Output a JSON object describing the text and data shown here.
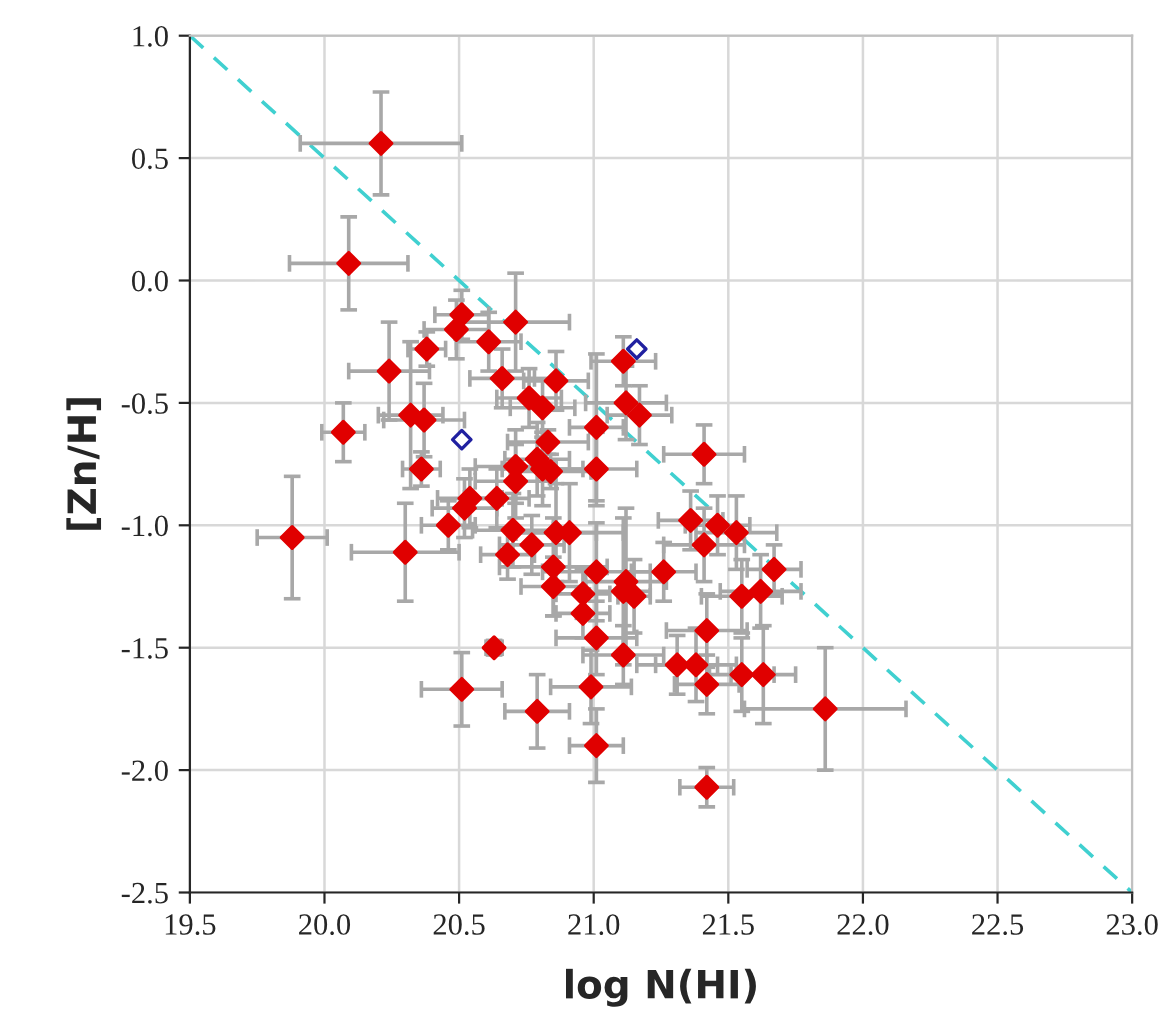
{
  "chart_data": {
    "type": "scatter",
    "xlabel": "log N(HI)",
    "ylabel": "[Zn/H]",
    "xlim": [
      19.5,
      23.0
    ],
    "ylim": [
      -2.5,
      1.0
    ],
    "xticks": [
      {
        "value": 19.5,
        "label": "19.5"
      },
      {
        "value": 20.0,
        "label": "20.0"
      },
      {
        "value": 20.5,
        "label": "20.5"
      },
      {
        "value": 21.0,
        "label": "21.0"
      },
      {
        "value": 21.5,
        "label": "21.5"
      },
      {
        "value": 22.0,
        "label": "22.0"
      },
      {
        "value": 22.5,
        "label": "22.5"
      },
      {
        "value": 23.0,
        "label": "23.0"
      }
    ],
    "yticks": [
      {
        "value": -2.5,
        "label": "-2.5"
      },
      {
        "value": -2.0,
        "label": "-2.0"
      },
      {
        "value": -1.5,
        "label": "-1.5"
      },
      {
        "value": -1.0,
        "label": "-1.0"
      },
      {
        "value": -0.5,
        "label": "-0.5"
      },
      {
        "value": 0.0,
        "label": "0.0"
      },
      {
        "value": 0.5,
        "label": "0.5"
      },
      {
        "value": 1.0,
        "label": "1.0"
      }
    ],
    "grid": true,
    "legend": false,
    "series": [
      {
        "type": "line",
        "color": "#40d0d0",
        "line_style": "dashed",
        "marker": "none",
        "x": [
          19.5,
          23.0
        ],
        "values": [
          1.0,
          -2.5
        ]
      },
      {
        "color": "#e00000",
        "marker": "diamond",
        "x": [
          20.21,
          20.09,
          20.51,
          20.49,
          20.61,
          20.71,
          20.38,
          20.24,
          20.66,
          20.86,
          20.76,
          20.81,
          20.32,
          20.37,
          20.07,
          20.36,
          19.88,
          20.3,
          20.46,
          20.52,
          20.54,
          20.64,
          20.7,
          20.68,
          20.77,
          20.71,
          20.71,
          20.63,
          20.51,
          20.79,
          20.85,
          20.83,
          20.79,
          20.81,
          20.84,
          21.11,
          21.12,
          21.17,
          21.01,
          21.41,
          21.01,
          20.86,
          20.91,
          21.36,
          21.46,
          21.53,
          21.41,
          21.01,
          21.26,
          21.67,
          20.85,
          20.96,
          21.12,
          21.11,
          21.15,
          21.55,
          21.62,
          20.96,
          21.01,
          21.42,
          21.11,
          21.31,
          21.38,
          21.42,
          21.55,
          21.63,
          21.86,
          20.99,
          21.01,
          21.42
        ],
        "values": [
          0.56,
          0.07,
          -0.14,
          -0.2,
          -0.25,
          -0.17,
          -0.28,
          -0.37,
          -0.4,
          -0.41,
          -0.48,
          -0.52,
          -0.55,
          -0.57,
          -0.62,
          -0.77,
          -1.05,
          -1.11,
          -1.0,
          -0.93,
          -0.89,
          -0.89,
          -1.02,
          -1.12,
          -1.08,
          -0.76,
          -0.82,
          -1.5,
          -1.67,
          -1.76,
          -1.17,
          -0.66,
          -0.73,
          -0.77,
          -0.78,
          -0.33,
          -0.5,
          -0.55,
          -0.6,
          -0.71,
          -0.77,
          -1.03,
          -1.03,
          -0.98,
          -1.0,
          -1.03,
          -1.08,
          -1.19,
          -1.19,
          -1.18,
          -1.25,
          -1.28,
          -1.23,
          -1.27,
          -1.29,
          -1.29,
          -1.27,
          -1.36,
          -1.46,
          -1.43,
          -1.53,
          -1.57,
          -1.57,
          -1.65,
          -1.61,
          -1.61,
          -1.75,
          -1.66,
          -1.9,
          -2.07
        ],
        "errors": [
          0.21,
          0.19,
          0.1,
          0.12,
          0.12,
          0.2,
          0.07,
          0.2,
          0.12,
          0.12,
          0.12,
          0.12,
          0.3,
          0.15,
          0.12,
          0.07,
          0.25,
          0.2,
          0.1,
          0.12,
          0.12,
          0.12,
          0.15,
          0.1,
          0.12,
          0.15,
          0.15,
          0.03,
          0.15,
          0.15,
          0.2,
          0.05,
          0.15,
          0.15,
          0.07,
          0.1,
          0.15,
          0.12,
          0.3,
          0.12,
          0.15,
          0.2,
          0.2,
          0.12,
          0.12,
          0.15,
          0.15,
          0.2,
          0.12,
          0.1,
          0.12,
          0.1,
          0.3,
          0.3,
          0.15,
          0.15,
          0.15,
          0.1,
          0.15,
          0.15,
          0.12,
          0.12,
          0.15,
          0.12,
          0.15,
          0.2,
          0.25,
          0.15,
          0.15,
          0.08
        ],
        "xerrors": [
          0.3,
          0.22,
          0.1,
          0.12,
          0.12,
          0.2,
          0.07,
          0.15,
          0.12,
          0.12,
          0.12,
          0.12,
          0.12,
          0.15,
          0.08,
          0.07,
          0.13,
          0.2,
          0.1,
          0.12,
          0.12,
          0.12,
          0.15,
          0.1,
          0.12,
          0.15,
          0.15,
          0.03,
          0.15,
          0.12,
          0.2,
          0.15,
          0.12,
          0.15,
          0.15,
          0.12,
          0.15,
          0.12,
          0.1,
          0.15,
          0.15,
          0.15,
          0.2,
          0.12,
          0.12,
          0.15,
          0.15,
          0.2,
          0.12,
          0.1,
          0.12,
          0.1,
          0.15,
          0.1,
          0.06,
          0.15,
          0.15,
          0.1,
          0.15,
          0.15,
          0.15,
          0.15,
          0.15,
          0.12,
          0.12,
          0.12,
          0.3,
          0.15,
          0.1,
          0.1
        ]
      },
      {
        "color": "#2020a0",
        "marker": "diamond",
        "x": [
          20.51,
          21.16
        ],
        "values": [
          -0.65,
          -0.28
        ]
      }
    ]
  }
}
